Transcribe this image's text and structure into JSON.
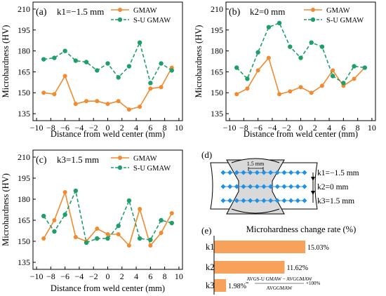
{
  "colors": {
    "gmaw": "#F28A30",
    "sugmaw": "#1E9E6A",
    "axis": "#000000",
    "bar": "#F7A15A",
    "weld_fill": "#d9d9d9",
    "dot": "#1E90E8"
  },
  "chart_data": [
    {
      "type": "line",
      "panel": "(a)",
      "label": "k1=−1.5 mm",
      "xlabel": "Distance from weld center (mm)",
      "ylabel": "Microhardness (HV)",
      "xlim": [
        -10.5,
        10.5
      ],
      "ylim": [
        130,
        215
      ],
      "xticks": [
        -10,
        -8,
        -6,
        -4,
        -2,
        0,
        2,
        4,
        6,
        8,
        10
      ],
      "yticks": [
        135,
        150,
        165,
        180,
        195,
        210
      ],
      "legend_position": "top-right",
      "series": [
        {
          "name": "GMAW",
          "x": [
            -9,
            -7.5,
            -6,
            -4.5,
            -3,
            -1.5,
            0,
            1.5,
            3,
            4.5,
            6,
            7.5,
            9
          ],
          "y": [
            150,
            149,
            162,
            142,
            144,
            144,
            142,
            144,
            138,
            140,
            153,
            154,
            168
          ]
        },
        {
          "name": "S-U GMAW",
          "x": [
            -9,
            -7.5,
            -6,
            -4.5,
            -3,
            -1.5,
            0,
            1.5,
            3,
            4.5,
            6,
            7.5,
            9
          ],
          "y": [
            174,
            175,
            180,
            173,
            172,
            166,
            171,
            161,
            169,
            186,
            157,
            171,
            166
          ]
        }
      ]
    },
    {
      "type": "line",
      "panel": "(b)",
      "label": "k2=0 mm",
      "xlabel": "Distance from weld center (mm)",
      "ylabel": "Microhardness (HV)",
      "xlim": [
        -10.5,
        10.5
      ],
      "ylim": [
        130,
        215
      ],
      "xticks": [
        -10,
        -8,
        -6,
        -4,
        -2,
        0,
        2,
        4,
        6,
        8,
        10
      ],
      "yticks": [
        135,
        150,
        165,
        180,
        195,
        210
      ],
      "legend_position": "top-right",
      "series": [
        {
          "name": "GMAW",
          "x": [
            -9,
            -7.5,
            -6,
            -4.5,
            -3,
            -1.5,
            0,
            1.5,
            3,
            4.5,
            6,
            7.5,
            9
          ],
          "y": [
            149,
            153,
            166,
            175,
            149,
            151,
            154,
            150,
            155,
            166,
            155,
            160,
            168
          ]
        },
        {
          "name": "S-U GMAW",
          "x": [
            -9,
            -7.5,
            -6,
            -4.5,
            -3,
            -1.5,
            0,
            1.5,
            3,
            4.5,
            6,
            7.5,
            9
          ],
          "y": [
            168,
            160,
            179,
            197,
            200,
            183,
            175,
            186,
            183,
            162,
            157,
            169,
            168
          ]
        }
      ]
    },
    {
      "type": "line",
      "panel": "(c)",
      "label": "k3=1.5 mm",
      "xlabel": "Distance from weld center (mm)",
      "ylabel": "Microhardness (HV)",
      "xlim": [
        -10.5,
        10.5
      ],
      "ylim": [
        130,
        215
      ],
      "xticks": [
        -10,
        -8,
        -6,
        -4,
        -2,
        0,
        2,
        4,
        6,
        8,
        10
      ],
      "yticks": [
        135,
        150,
        165,
        180,
        195,
        210
      ],
      "legend_position": "top-right",
      "series": [
        {
          "name": "GMAW",
          "x": [
            -9,
            -7.5,
            -6,
            -4.5,
            -3,
            -1.5,
            0,
            1.5,
            3,
            4.5,
            6,
            7.5,
            9
          ],
          "y": [
            152,
            165,
            185,
            153,
            150,
            159,
            155,
            155,
            147,
            173,
            147,
            156,
            170
          ]
        },
        {
          "name": "S-U GMAW",
          "x": [
            -9,
            -7.5,
            -6,
            -4.5,
            -3,
            -1.5,
            0,
            1.5,
            3,
            4.5,
            6,
            7.5,
            9
          ],
          "y": [
            168,
            157,
            169,
            186,
            149,
            152,
            152,
            161,
            179,
            152,
            151,
            165,
            163
          ]
        }
      ]
    },
    {
      "type": "bar",
      "panel": "(e)",
      "title": "Microhardness change rate (%)",
      "categories": [
        "k1",
        "k2",
        "k3"
      ],
      "values": [
        15.03,
        11.62,
        1.98
      ],
      "value_labels": [
        "15.03%",
        "11.62%",
        "1.98%"
      ],
      "formula": {
        "numerator": "AVGₛ₋ᵤ ᴳᴹᴬᵂ − AVGᴳᴹᴬᵂ",
        "numerator_main": "AVGS-U GMAW − AVGGMAW",
        "denominator": "AVGGMAW",
        "suffix": "×100%"
      }
    }
  ],
  "diagram": {
    "panel": "(d)",
    "spacing_label": "1.5 mm",
    "row_labels": [
      "k1=−1.5 mm",
      "k2=0 mm",
      "k3=1.5 mm"
    ]
  }
}
